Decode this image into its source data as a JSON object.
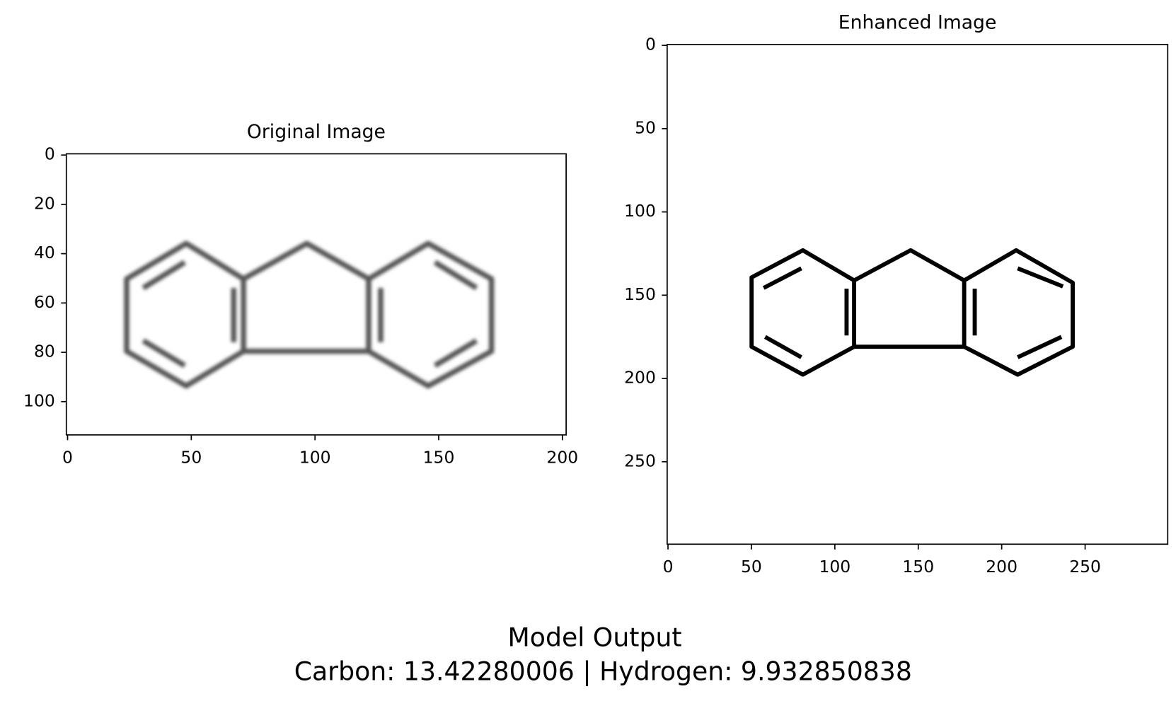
{
  "chart_data": [
    {
      "type": "image",
      "title": "Original Image",
      "xlim": [
        -0.5,
        201.5
      ],
      "ylim": [
        113.5,
        -0.5
      ],
      "xticks": [
        0,
        50,
        100,
        150,
        200
      ],
      "yticks": [
        0,
        20,
        40,
        60,
        80,
        100
      ]
    },
    {
      "type": "image",
      "title": "Enhanced Image",
      "xlim": [
        -0.5,
        299.5
      ],
      "ylim": [
        299.5,
        -0.5
      ],
      "xticks": [
        0,
        50,
        100,
        150,
        200,
        250
      ],
      "yticks": [
        0,
        50,
        100,
        150,
        200,
        250
      ]
    }
  ],
  "figure_text": {
    "heading": "Model Output",
    "result": "Carbon: 13.42280006 | Hydrogen: 9.932850838"
  }
}
